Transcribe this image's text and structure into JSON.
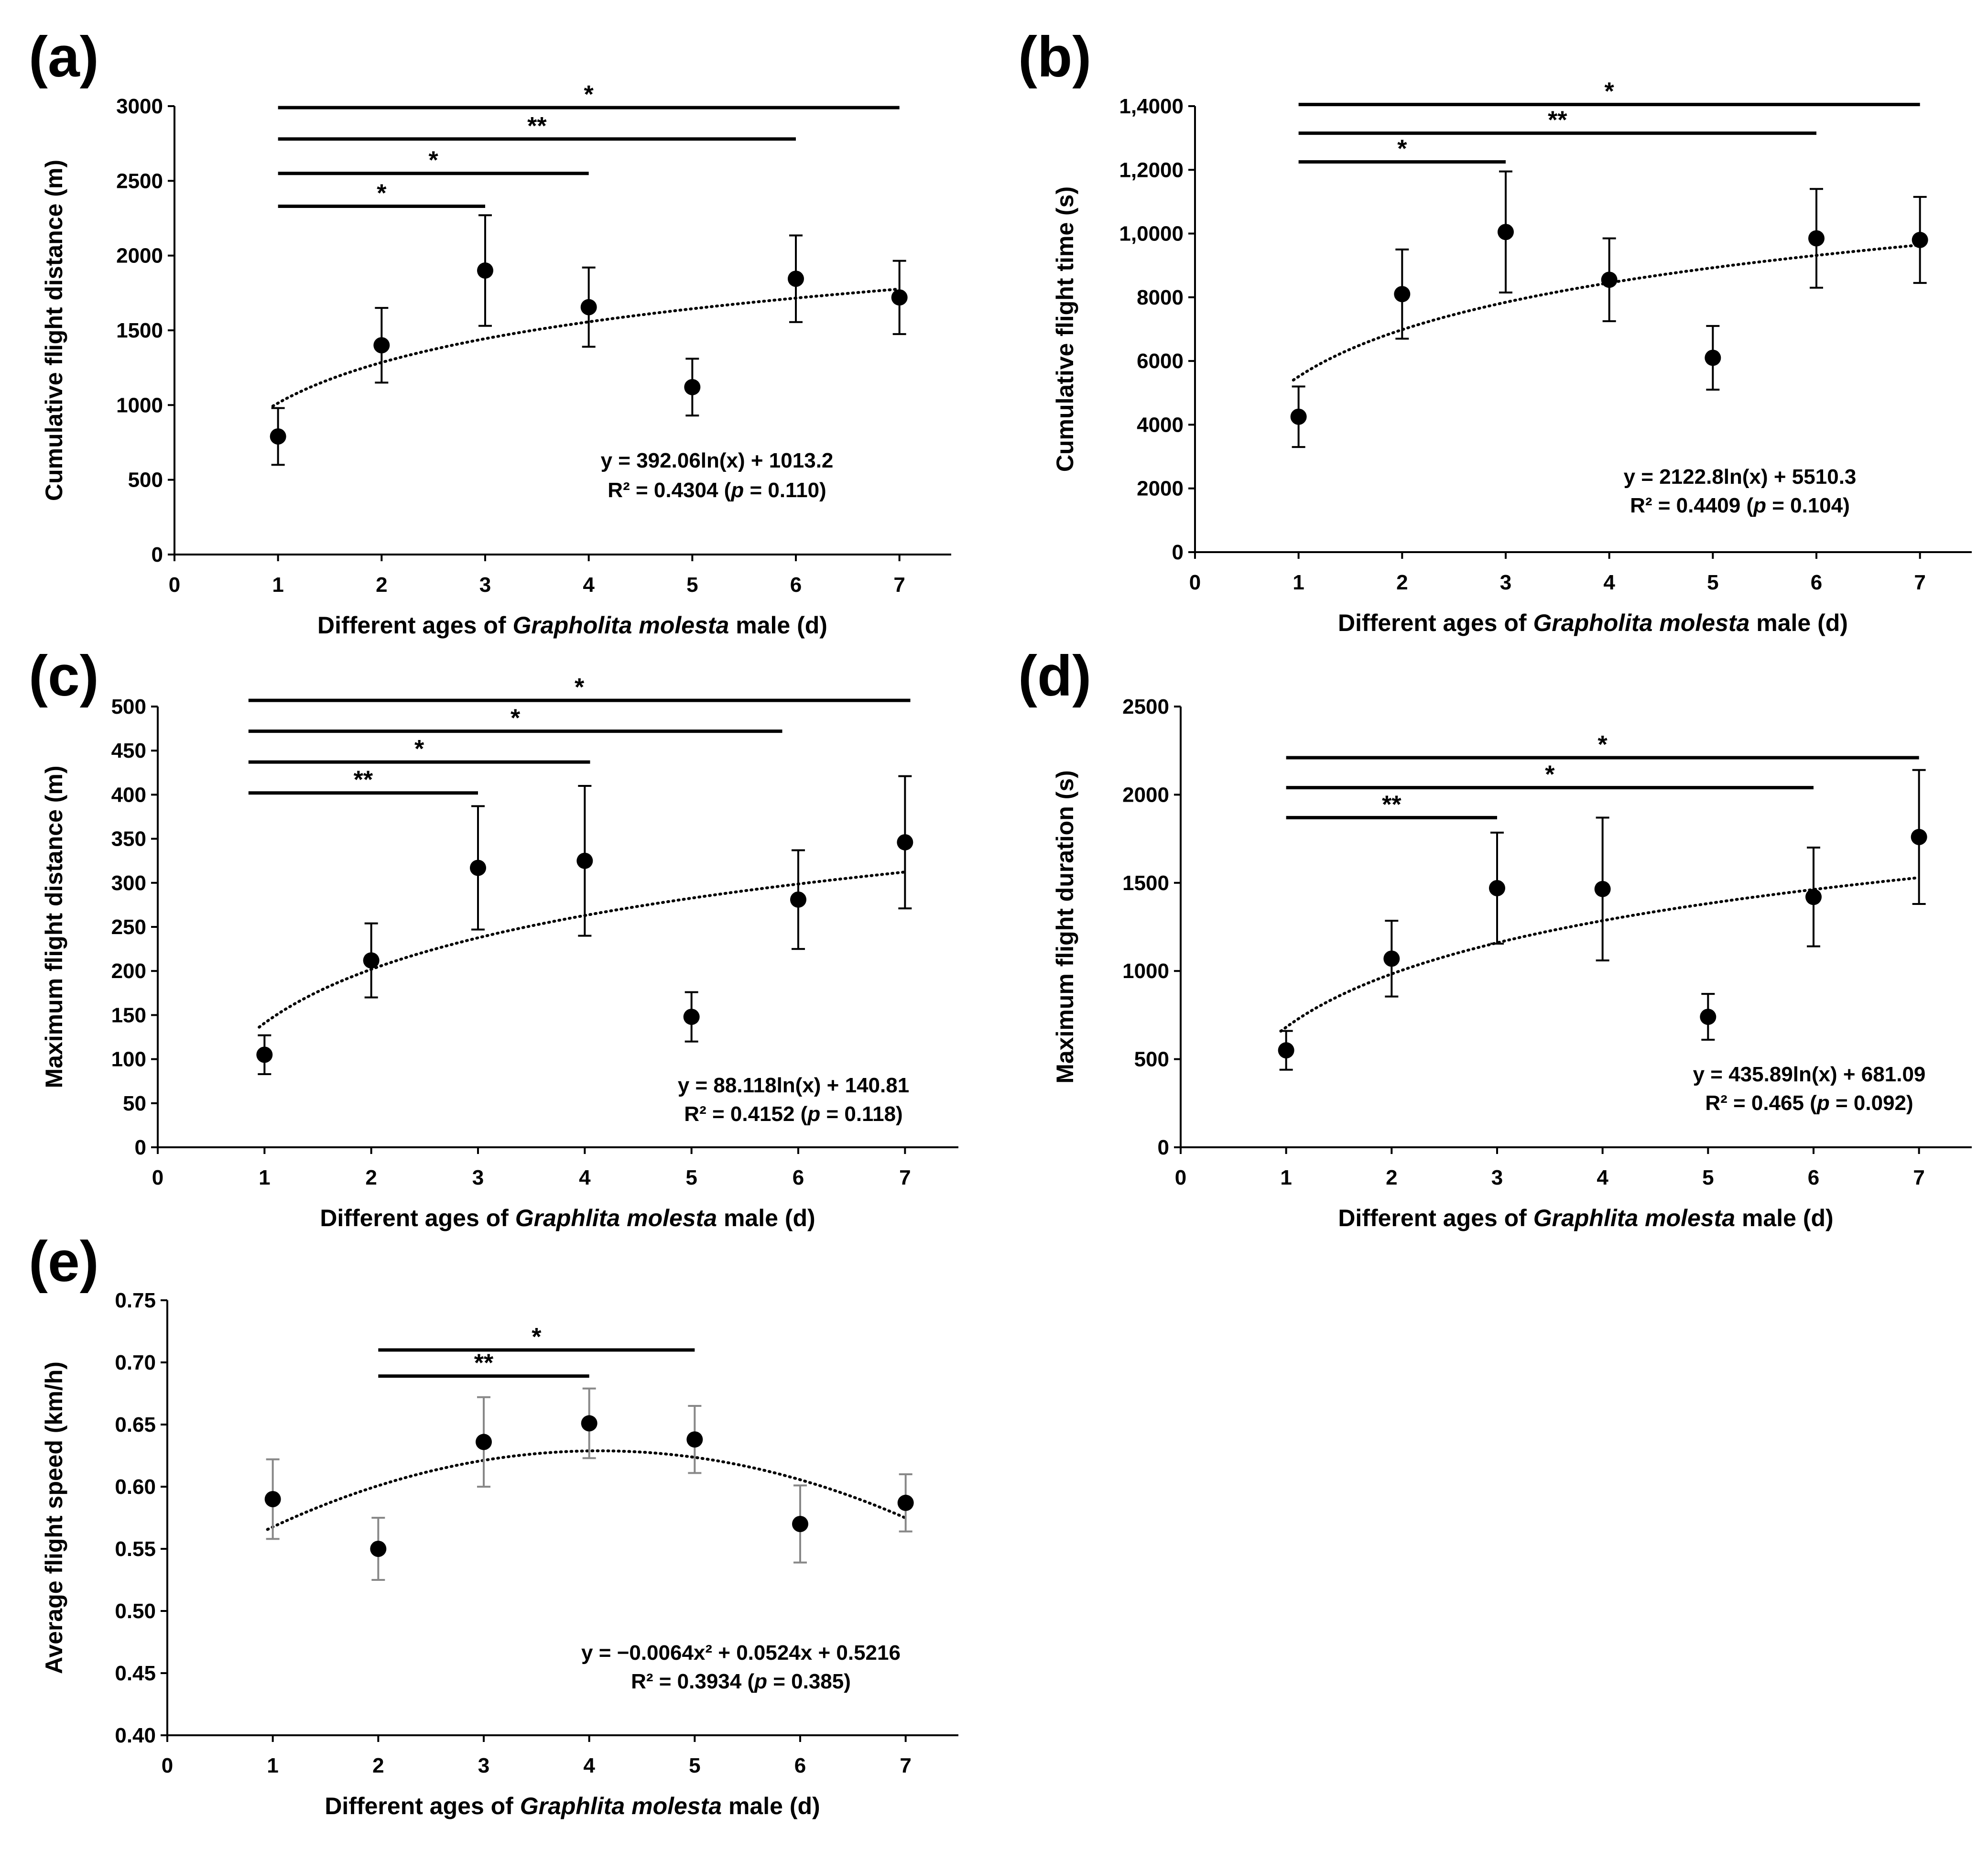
{
  "chart_data": [
    {
      "panel": "(a)",
      "type": "scatter",
      "x": [
        1,
        2,
        3,
        4,
        5,
        6,
        7
      ],
      "values": [
        790,
        1400,
        1900,
        1655,
        1120,
        1845,
        1720
      ],
      "err_upper": [
        190,
        250,
        370,
        265,
        190,
        290,
        245
      ],
      "err_lower": [
        190,
        250,
        370,
        265,
        190,
        290,
        245
      ],
      "xlim": [
        0,
        7.5
      ],
      "ylim": [
        0,
        3000
      ],
      "x_ticks": [
        "0",
        "1",
        "2",
        "3",
        "4",
        "5",
        "6",
        "7"
      ],
      "y_ticks": [
        "0",
        "500",
        "1000",
        "1500",
        "2000",
        "2500",
        "3000"
      ],
      "y_tick_values": [
        0,
        500,
        1000,
        1500,
        2000,
        2500,
        3000
      ],
      "ylabel": "Cumulative flight distance (m)",
      "xlabel_parts": [
        "Different ages of ",
        "Grapholita molesta",
        " male (d)"
      ],
      "trend": {
        "kind": "log",
        "a": 392.06,
        "b": 1013.2
      },
      "equation": "y = 392.06ln(x) + 1013.2",
      "r2_parts": [
        "R² = 0.4304 (",
        "p",
        " = 0.110)"
      ],
      "significance": [
        {
          "from": 1,
          "to": 7,
          "y": 2990,
          "label": "*"
        },
        {
          "from": 1,
          "to": 6,
          "y": 2780,
          "label": "**"
        },
        {
          "from": 1,
          "to": 4,
          "y": 2550,
          "label": "*"
        },
        {
          "from": 1,
          "to": 3,
          "y": 2330,
          "label": "*"
        }
      ]
    },
    {
      "panel": "(b)",
      "type": "scatter",
      "x": [
        1,
        2,
        3,
        4,
        5,
        6,
        7
      ],
      "values": [
        4250,
        8100,
        10050,
        8550,
        6100,
        9850,
        9800
      ],
      "err_upper": [
        950,
        1400,
        1900,
        1300,
        1000,
        1550,
        1350
      ],
      "err_lower": [
        950,
        1400,
        1900,
        1300,
        1000,
        1550,
        1350
      ],
      "xlim": [
        0,
        7.5
      ],
      "ylim": [
        0,
        14000
      ],
      "x_ticks": [
        "0",
        "1",
        "2",
        "3",
        "4",
        "5",
        "6",
        "7"
      ],
      "y_ticks": [
        "0",
        "2000",
        "4000",
        "6000",
        "8000",
        "1,0000",
        "1,2000",
        "1,4000"
      ],
      "y_tick_values": [
        0,
        2000,
        4000,
        6000,
        8000,
        10000,
        12000,
        14000
      ],
      "ylabel": "Cumulative flight time (s)",
      "xlabel_parts": [
        "Different ages of ",
        "Grapholita molesta",
        " male (d)"
      ],
      "trend": {
        "kind": "log",
        "a": 2122.8,
        "b": 5510.3
      },
      "equation": "y = 2122.8ln(x) + 5510.3",
      "r2_parts": [
        "R² = 0.4409 (",
        "p",
        " = 0.104)"
      ],
      "significance": [
        {
          "from": 1,
          "to": 7,
          "y": 14050,
          "label": "*"
        },
        {
          "from": 1,
          "to": 6,
          "y": 13150,
          "label": "**"
        },
        {
          "from": 1,
          "to": 3,
          "y": 12250,
          "label": "*"
        }
      ]
    },
    {
      "panel": "(c)",
      "type": "scatter",
      "x": [
        1,
        2,
        3,
        4,
        5,
        6,
        7
      ],
      "values": [
        105,
        212,
        317,
        325,
        148,
        281,
        346
      ],
      "err_upper": [
        22,
        42,
        70,
        85,
        28,
        56,
        75
      ],
      "err_lower": [
        22,
        42,
        70,
        85,
        28,
        56,
        75
      ],
      "xlim": [
        0,
        7.5
      ],
      "ylim": [
        0,
        500
      ],
      "x_ticks": [
        "0",
        "1",
        "2",
        "3",
        "4",
        "5",
        "6",
        "7"
      ],
      "y_ticks": [
        "0",
        "50",
        "100",
        "150",
        "200",
        "250",
        "300",
        "350",
        "400",
        "450",
        "500"
      ],
      "y_tick_values": [
        0,
        50,
        100,
        150,
        200,
        250,
        300,
        350,
        400,
        450,
        500
      ],
      "ylabel": "Maximum flight distance (m)",
      "xlabel_parts": [
        "Different ages of ",
        "Graphlita molesta",
        " male (d)"
      ],
      "trend": {
        "kind": "log",
        "a": 88.118,
        "b": 140.81
      },
      "equation": "y = 88.118ln(x) + 140.81",
      "r2_parts": [
        "R² = 0.4152 (",
        "p",
        " = 0.118)"
      ],
      "significance": [
        {
          "from": 0.85,
          "to": 7.05,
          "y": 507,
          "label": "*"
        },
        {
          "from": 0.85,
          "to": 5.85,
          "y": 472,
          "label": "*"
        },
        {
          "from": 0.85,
          "to": 4.05,
          "y": 437,
          "label": "*"
        },
        {
          "from": 0.85,
          "to": 3.0,
          "y": 402,
          "label": "**"
        }
      ]
    },
    {
      "panel": "(d)",
      "type": "scatter",
      "x": [
        1,
        2,
        3,
        4,
        5,
        6,
        7
      ],
      "values": [
        550,
        1070,
        1470,
        1465,
        740,
        1420,
        1760
      ],
      "err_upper": [
        110,
        215,
        315,
        405,
        130,
        280,
        380
      ],
      "err_lower": [
        110,
        215,
        315,
        405,
        130,
        280,
        380
      ],
      "xlim": [
        0,
        7.5
      ],
      "ylim": [
        0,
        2500
      ],
      "x_ticks": [
        "0",
        "1",
        "2",
        "3",
        "4",
        "5",
        "6",
        "7"
      ],
      "y_ticks": [
        "0",
        "500",
        "1000",
        "1500",
        "2000",
        "2500"
      ],
      "y_tick_values": [
        0,
        500,
        1000,
        1500,
        2000,
        2500
      ],
      "ylabel": "Maximum flight duration (s)",
      "xlabel_parts": [
        "Different ages of ",
        "Graphlita molesta",
        " male (d)"
      ],
      "trend": {
        "kind": "log",
        "a": 435.89,
        "b": 681.09
      },
      "equation": "y = 435.89ln(x) + 681.09",
      "r2_parts": [
        "R² = 0.465 (",
        "p",
        " = 0.092)"
      ],
      "significance": [
        {
          "from": 1,
          "to": 7,
          "y": 2210,
          "label": "*"
        },
        {
          "from": 1,
          "to": 6,
          "y": 2040,
          "label": "*"
        },
        {
          "from": 1,
          "to": 3,
          "y": 1870,
          "label": "**"
        }
      ]
    },
    {
      "panel": "(e)",
      "type": "scatter",
      "x": [
        1,
        2,
        3,
        4,
        5,
        6,
        7
      ],
      "values": [
        0.59,
        0.55,
        0.636,
        0.651,
        0.638,
        0.57,
        0.587
      ],
      "err_upper": [
        0.032,
        0.025,
        0.036,
        0.028,
        0.027,
        0.031,
        0.023
      ],
      "err_lower": [
        0.032,
        0.025,
        0.036,
        0.028,
        0.027,
        0.031,
        0.023
      ],
      "xlim": [
        0,
        7.5
      ],
      "ylim": [
        0.4,
        0.75
      ],
      "x_ticks": [
        "0",
        "1",
        "2",
        "3",
        "4",
        "5",
        "6",
        "7"
      ],
      "y_ticks": [
        "0.40",
        "0.45",
        "0.50",
        "0.55",
        "0.60",
        "0.65",
        "0.70",
        "0.75"
      ],
      "y_tick_values": [
        0.4,
        0.45,
        0.5,
        0.55,
        0.6,
        0.65,
        0.7,
        0.75
      ],
      "ylabel": "Average flight speed (km/h)",
      "xlabel_parts": [
        "Different ages of ",
        "Graphlita molesta",
        " male (d)"
      ],
      "trend": {
        "kind": "poly2",
        "a": -0.0064,
        "b": 0.0524,
        "c": 0.5216
      },
      "equation": "y = −0.0064x² + 0.0524x + 0.5216",
      "r2_parts": [
        "R² = 0.3934   (",
        "p",
        " = 0.385)"
      ],
      "significance": [
        {
          "from": 2,
          "to": 5,
          "y": 0.71,
          "label": "*"
        },
        {
          "from": 2,
          "to": 4,
          "y": 0.689,
          "label": "**"
        }
      ]
    }
  ]
}
